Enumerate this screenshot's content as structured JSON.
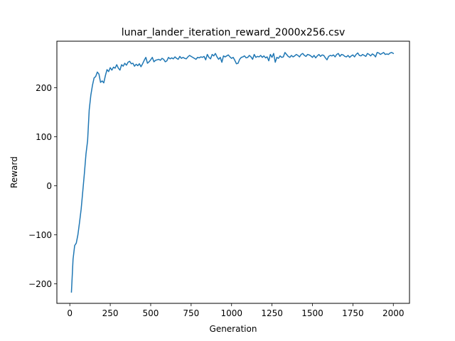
{
  "chart_data": {
    "type": "line",
    "title": "lunar_lander_iteration_reward_2000x256.csv",
    "xlabel": "Generation",
    "ylabel": "Reward",
    "xlim": [
      -80,
      2100
    ],
    "ylim": [
      -240,
      295
    ],
    "xticks": [
      0,
      250,
      500,
      750,
      1000,
      1250,
      1500,
      1750,
      2000
    ],
    "yticks": [
      -200,
      -100,
      0,
      100,
      200
    ],
    "grid": false,
    "legend": "none",
    "series": [
      {
        "color": "#1f77b4",
        "x": [
          10,
          20,
          30,
          40,
          50,
          60,
          70,
          80,
          90,
          100,
          110,
          120,
          130,
          140,
          150,
          160,
          170,
          180,
          190,
          200,
          210,
          220,
          230,
          240,
          250,
          260,
          270,
          280,
          290,
          300,
          310,
          320,
          330,
          340,
          350,
          360,
          370,
          380,
          390,
          400,
          410,
          420,
          430,
          440,
          450,
          460,
          470,
          480,
          490,
          500,
          510,
          520,
          530,
          540,
          550,
          560,
          570,
          580,
          590,
          600,
          610,
          620,
          630,
          640,
          650,
          660,
          670,
          680,
          690,
          700,
          710,
          720,
          730,
          740,
          750,
          760,
          770,
          780,
          790,
          800,
          810,
          820,
          830,
          840,
          850,
          860,
          870,
          880,
          890,
          900,
          910,
          920,
          930,
          940,
          950,
          960,
          970,
          980,
          990,
          1000,
          1010,
          1020,
          1030,
          1040,
          1050,
          1060,
          1070,
          1080,
          1090,
          1100,
          1110,
          1120,
          1130,
          1140,
          1150,
          1160,
          1170,
          1180,
          1190,
          1200,
          1210,
          1220,
          1230,
          1240,
          1250,
          1260,
          1270,
          1280,
          1290,
          1300,
          1310,
          1320,
          1330,
          1340,
          1350,
          1360,
          1370,
          1380,
          1390,
          1400,
          1410,
          1420,
          1430,
          1440,
          1450,
          1460,
          1470,
          1480,
          1490,
          1500,
          1510,
          1520,
          1530,
          1540,
          1550,
          1560,
          1570,
          1580,
          1590,
          1600,
          1610,
          1620,
          1630,
          1640,
          1650,
          1660,
          1670,
          1680,
          1690,
          1700,
          1710,
          1720,
          1730,
          1740,
          1750,
          1760,
          1770,
          1780,
          1790,
          1800,
          1810,
          1820,
          1830,
          1840,
          1850,
          1860,
          1870,
          1880,
          1890,
          1900,
          1910,
          1920,
          1930,
          1940,
          1950,
          1960,
          1970,
          1980,
          1990,
          2000
        ],
        "values": [
          -217,
          -150,
          -122,
          -117,
          -100,
          -75,
          -48,
          -12,
          25,
          65,
          92,
          155,
          185,
          205,
          220,
          223,
          232,
          228,
          211,
          214,
          210,
          225,
          237,
          233,
          241,
          236,
          242,
          240,
          247,
          240,
          236,
          247,
          244,
          250,
          246,
          252,
          254,
          249,
          250,
          244,
          248,
          245,
          249,
          243,
          249,
          256,
          262,
          250,
          253,
          257,
          262,
          253,
          256,
          257,
          258,
          256,
          260,
          258,
          253,
          255,
          262,
          259,
          261,
          259,
          263,
          260,
          258,
          264,
          260,
          262,
          260,
          259,
          263,
          266,
          264,
          262,
          260,
          258,
          262,
          261,
          263,
          262,
          264,
          257,
          268,
          262,
          259,
          268,
          265,
          270,
          263,
          258,
          262,
          252,
          265,
          263,
          265,
          267,
          263,
          260,
          262,
          256,
          249,
          250,
          258,
          262,
          263,
          265,
          261,
          262,
          266,
          263,
          258,
          268,
          262,
          264,
          263,
          266,
          262,
          265,
          261,
          263,
          255,
          268,
          262,
          270,
          252,
          262,
          260,
          265,
          262,
          263,
          272,
          268,
          264,
          262,
          266,
          263,
          265,
          268,
          266,
          263,
          268,
          270,
          266,
          264,
          268,
          267,
          265,
          262,
          266,
          261,
          265,
          268,
          264,
          267,
          266,
          261,
          257,
          264,
          266,
          265,
          267,
          263,
          268,
          270,
          264,
          268,
          267,
          264,
          263,
          266,
          262,
          265,
          267,
          263,
          268,
          271,
          266,
          265,
          268,
          266,
          264,
          270,
          268,
          265,
          269,
          267,
          263,
          272,
          271,
          268,
          270,
          272,
          268,
          269,
          268,
          271,
          272,
          270
        ]
      }
    ]
  }
}
